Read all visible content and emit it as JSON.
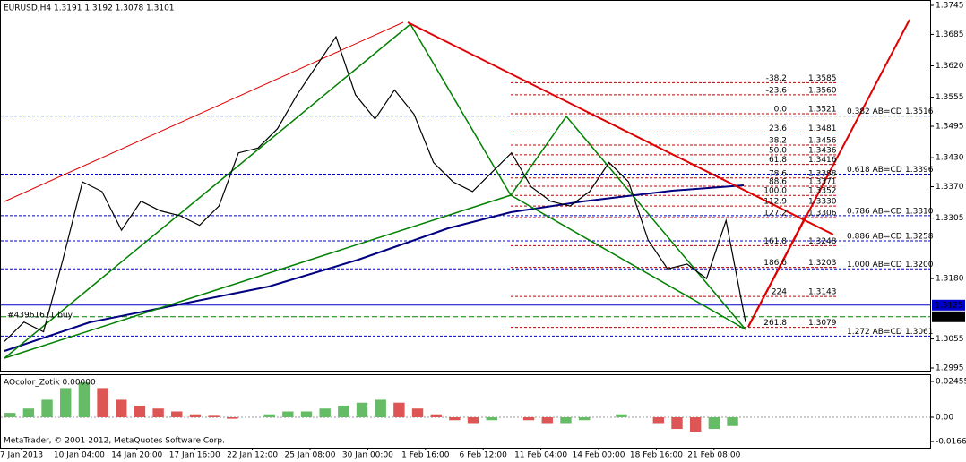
{
  "header": {
    "symbol_info": "EURUSD,H4  1.3191 1.3192 1.3078 1.3101"
  },
  "price_axis": {
    "ylim": [
      1.2995,
      1.3745
    ],
    "ticks": [
      1.3745,
      1.3685,
      {
        "value": 1.362,
        "label": "1.3620"
      },
      1.3555,
      1.3495,
      {
        "value": 1.343,
        "label": "1.3430"
      },
      {
        "value": 1.337,
        "label": "1.3370"
      },
      1.3305,
      {
        "value": 1.318,
        "label": "1.3180"
      },
      1.3055,
      1.2995
    ]
  },
  "current": {
    "ask": 1.3125,
    "close": 1.3101
  },
  "order_label": "#43961611 buy",
  "fib_levels": [
    {
      "ratio": "-38.2",
      "price": 1.3585
    },
    {
      "ratio": "-23.6",
      "price": {
        "value": 1.356,
        "label": "1.3560"
      }
    },
    {
      "ratio": "0.0",
      "price": 1.3521
    },
    {
      "ratio": "23.6",
      "price": 1.3481
    },
    {
      "ratio": "38.2",
      "price": 1.3456
    },
    {
      "ratio": "50.0",
      "price": 1.3436
    },
    {
      "ratio": "61.8",
      "price": 1.3416
    },
    {
      "ratio": "78.6",
      "price": 1.3388
    },
    {
      "ratio": "88.6",
      "price": 1.3371
    },
    {
      "ratio": "100.0",
      "price": 1.3352
    },
    {
      "ratio": "112.9",
      "price": {
        "value": 1.333,
        "label": "1.3330"
      }
    },
    {
      "ratio": "127.2",
      "price": 1.3306
    },
    {
      "ratio": "161.8",
      "price": 1.3248
    },
    {
      "ratio": "186.6",
      "price": 1.3203
    },
    {
      "ratio": "224",
      "price": 1.3143
    },
    {
      "ratio": "261.8",
      "price": 1.3079
    }
  ],
  "abcd_levels": [
    {
      "label": "0.382 AB=CD",
      "price": 1.3516
    },
    {
      "label": "0.618 AB=CD",
      "price": 1.3396
    },
    {
      "label": "0.786 AB=CD",
      "price": {
        "value": 1.331,
        "label": "1.3310"
      }
    },
    {
      "label": "0.886 AB=CD",
      "price": 1.3258
    },
    {
      "label": "1.000 AB=CD",
      "price": {
        "value": 1.32,
        "label": "1.3200"
      }
    },
    {
      "label": "1.272 AB=CD",
      "price": 1.3061
    }
  ],
  "price_closes": [
    1.305,
    1.309,
    1.307,
    1.322,
    1.338,
    1.336,
    1.328,
    1.334,
    1.332,
    1.331,
    1.329,
    1.333,
    1.344,
    1.345,
    1.349,
    1.356,
    1.362,
    1.368,
    1.356,
    1.351,
    1.357,
    1.352,
    1.342,
    1.338,
    1.336,
    1.34,
    1.344,
    1.337,
    1.334,
    1.333,
    1.336,
    1.342,
    1.338,
    1.326,
    1.32,
    1.321,
    1.318,
    1.33,
    1.309
  ],
  "indicator": {
    "title": "AOcolor_Zotik 0.00000",
    "ticks": [
      0.02455,
      {
        "value": 0,
        "label": "0.00"
      },
      -0.01663
    ],
    "values": [
      0.003,
      0.006,
      0.012,
      0.02,
      0.024,
      0.02,
      0.012,
      0.008,
      0.006,
      0.004,
      0.002,
      0.001,
      -0.001,
      0,
      0.002,
      0.004,
      0.004,
      0.006,
      0.008,
      0.01,
      0.012,
      0.01,
      0.006,
      0.002,
      -0.002,
      -0.004,
      -0.002,
      0,
      -0.002,
      -0.004,
      -0.004,
      -0.002,
      0,
      0.002,
      0,
      -0.004,
      -0.008,
      -0.01,
      -0.008,
      -0.006
    ]
  },
  "time_axis": [
    "7 Jan 2013",
    "10 Jan 04:00",
    "14 Jan 20:00",
    "17 Jan 16:00",
    "22 Jan 12:00",
    "25 Jan 08:00",
    "30 Jan 00:00",
    "1 Feb 16:00",
    "6 Feb 12:00",
    "11 Feb 04:00",
    "14 Feb 00:00",
    "18 Feb 16:00",
    "21 Feb 08:00"
  ],
  "copyright": "MetaTrader, © 2001-2012, MetaQuotes Software Corp."
}
